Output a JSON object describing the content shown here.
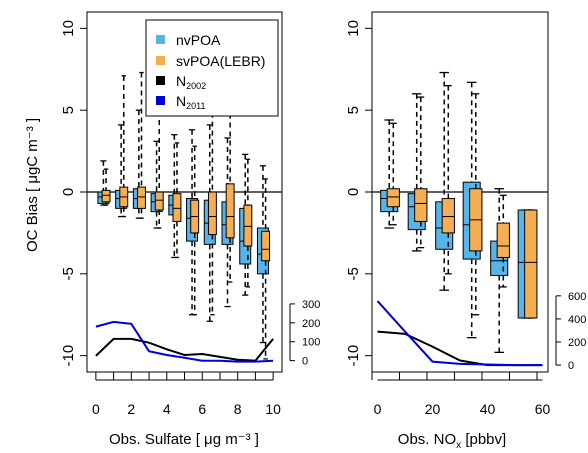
{
  "chart_data": [
    {
      "type": "boxplot",
      "panel": "left",
      "ylabel": "OC Bias [ μgC m⁻³ ]",
      "xlabel": "Obs. Sulfate [ μg m⁻³ ]",
      "xlim": [
        -0.5,
        10.5
      ],
      "ylim": [
        -11,
        11
      ],
      "yticks": [
        -10,
        -5,
        0,
        5,
        10
      ],
      "xticks": [
        0,
        2,
        4,
        6,
        8,
        10
      ],
      "ref_line_y": 0,
      "legend": {
        "position": "top-right",
        "entries": [
          {
            "label": "nvPOA",
            "color": "#56b4e9",
            "kind": "box"
          },
          {
            "label": "svPOA(LEBR)",
            "color": "#f5ae52",
            "kind": "box"
          },
          {
            "label_main": "N",
            "label_sub": "2002",
            "color": "#000000",
            "kind": "box"
          },
          {
            "label_main": "N",
            "label_sub": "2011",
            "color": "#0000dd",
            "kind": "box"
          }
        ]
      },
      "series": [
        {
          "name": "nvPOA",
          "color": "#56b4e9",
          "boxes": [
            {
              "x": 0.5,
              "q1": -0.7,
              "median": -0.3,
              "q3": 0.0,
              "whisker_low": -0.8,
              "whisker_high": 1.9
            },
            {
              "x": 1.5,
              "q1": -1.0,
              "median": -0.4,
              "q3": 0.1,
              "whisker_low": -1.5,
              "whisker_high": 4.1
            },
            {
              "x": 2.5,
              "q1": -1.0,
              "median": -0.4,
              "q3": 0.2,
              "whisker_low": -1.6,
              "whisker_high": 5.0
            },
            {
              "x": 3.5,
              "q1": -1.2,
              "median": -0.6,
              "q3": -0.1,
              "whisker_low": -2.2,
              "whisker_high": 3.1
            },
            {
              "x": 4.5,
              "q1": -1.4,
              "median": -0.8,
              "q3": -0.2,
              "whisker_low": -4.0,
              "whisker_high": 3.5
            },
            {
              "x": 5.5,
              "q1": -3.0,
              "median": -1.6,
              "q3": -0.4,
              "whisker_low": -7.5,
              "whisker_high": 3.8
            },
            {
              "x": 6.5,
              "q1": -3.2,
              "median": -1.9,
              "q3": -0.5,
              "whisker_low": -7.9,
              "whisker_high": 4.1
            },
            {
              "x": 7.5,
              "q1": -3.2,
              "median": -2.0,
              "q3": -0.6,
              "whisker_low": -7.0,
              "whisker_high": 3.3
            },
            {
              "x": 8.5,
              "q1": -4.4,
              "median": -3.0,
              "q3": -1.0,
              "whisker_low": -6.3,
              "whisker_high": 2.3
            },
            {
              "x": 9.5,
              "q1": -5.0,
              "median": -3.8,
              "q3": -2.2,
              "whisker_low": -9.2,
              "whisker_high": 1.6
            }
          ]
        },
        {
          "name": "svPOA(LEBR)",
          "color": "#f5ae52",
          "boxes": [
            {
              "x": 0.5,
              "q1": -0.6,
              "median": -0.2,
              "q3": 0.1,
              "whisker_low": -0.8,
              "whisker_high": 1.4
            },
            {
              "x": 1.5,
              "q1": -0.9,
              "median": -0.3,
              "q3": 0.3,
              "whisker_low": -1.5,
              "whisker_high": 7.1
            },
            {
              "x": 2.5,
              "q1": -1.0,
              "median": -0.3,
              "q3": 0.3,
              "whisker_low": -1.6,
              "whisker_high": 7.3
            },
            {
              "x": 3.5,
              "q1": -1.1,
              "median": -0.5,
              "q3": 0.0,
              "whisker_low": -2.2,
              "whisker_high": 5.5
            },
            {
              "x": 4.5,
              "q1": -1.8,
              "median": -1.0,
              "q3": -0.1,
              "whisker_low": -4.0,
              "whisker_high": 3.0
            },
            {
              "x": 5.5,
              "q1": -2.5,
              "median": -1.5,
              "q3": -0.5,
              "whisker_low": -7.5,
              "whisker_high": 2.8
            },
            {
              "x": 6.5,
              "q1": -2.6,
              "median": -1.5,
              "q3": 0.0,
              "whisker_low": -7.5,
              "whisker_high": 5.4
            },
            {
              "x": 7.5,
              "q1": -2.8,
              "median": -1.5,
              "q3": 0.5,
              "whisker_low": -5.5,
              "whisker_high": 5.9
            },
            {
              "x": 8.5,
              "q1": -3.3,
              "median": -2.1,
              "q3": -0.8,
              "whisker_low": -5.8,
              "whisker_high": 2.0
            },
            {
              "x": 9.5,
              "q1": -4.2,
              "median": -3.5,
              "q3": -2.4,
              "whisker_low": -10.2,
              "whisker_high": 0.8
            }
          ]
        }
      ],
      "n_counts": {
        "secondary_ticks": [
          0,
          100,
          200,
          300
        ],
        "secondary_ylim": [
          -60,
          400
        ],
        "x": [
          0,
          1,
          2,
          3,
          4,
          5,
          6,
          7,
          8,
          9,
          10
        ],
        "series": [
          {
            "name": "N2002",
            "color": "#000000",
            "values": [
              25,
              115,
              115,
              95,
              60,
              30,
              35,
              20,
              5,
              0,
              115
            ]
          },
          {
            "name": "N2011",
            "color": "#0000dd",
            "values": [
              180,
              205,
              195,
              50,
              30,
              15,
              0,
              0,
              -5,
              -5,
              0
            ]
          }
        ]
      }
    },
    {
      "type": "boxplot",
      "panel": "right",
      "xlabel_main": "Obs. NO",
      "xlabel_sub": "x",
      "xlabel_tail": "  [pbbv]",
      "xlim": [
        -2,
        62
      ],
      "ylim": [
        -11,
        11
      ],
      "yticks": [
        -10,
        -5,
        0,
        5,
        10
      ],
      "xticks": [
        0,
        20,
        40,
        60
      ],
      "ref_line_y": 0,
      "series": [
        {
          "name": "nvPOA",
          "color": "#56b4e9",
          "boxes": [
            {
              "x": 5,
              "q1": -1.2,
              "median": -0.4,
              "q3": 0.1,
              "whisker_low": -2.2,
              "whisker_high": 4.4
            },
            {
              "x": 15,
              "q1": -2.3,
              "median": -0.9,
              "q3": -0.1,
              "whisker_low": -3.6,
              "whisker_high": 6.0
            },
            {
              "x": 25,
              "q1": -3.5,
              "median": -2.2,
              "q3": -0.6,
              "whisker_low": -6.0,
              "whisker_high": 7.3
            },
            {
              "x": 35,
              "q1": -4.1,
              "median": -2.0,
              "q3": 0.6,
              "whisker_low": -8.9,
              "whisker_high": 6.7
            },
            {
              "x": 45,
              "q1": -5.1,
              "median": -4.2,
              "q3": -3.0,
              "whisker_low": -9.8,
              "whisker_high": 0.2
            },
            {
              "x": 55,
              "q1": -7.7,
              "median": -4.3,
              "q3": -1.1,
              "whisker_low": -7.7,
              "whisker_high": -1.1
            }
          ]
        },
        {
          "name": "svPOA(LEBR)",
          "color": "#f5ae52",
          "boxes": [
            {
              "x": 5,
              "q1": -0.9,
              "median": -0.3,
              "q3": 0.2,
              "whisker_low": -2.0,
              "whisker_high": 4.2
            },
            {
              "x": 15,
              "q1": -1.8,
              "median": -0.7,
              "q3": 0.2,
              "whisker_low": -3.4,
              "whisker_high": 5.8
            },
            {
              "x": 25,
              "q1": -2.5,
              "median": -1.5,
              "q3": -0.4,
              "whisker_low": -5.0,
              "whisker_high": 6.5
            },
            {
              "x": 35,
              "q1": -3.6,
              "median": -1.7,
              "q3": 0.2,
              "whisker_low": -7.5,
              "whisker_high": 6.0
            },
            {
              "x": 45,
              "q1": -4.0,
              "median": -3.3,
              "q3": -1.9,
              "whisker_low": -5.8,
              "whisker_high": -0.2
            },
            {
              "x": 55,
              "q1": -7.7,
              "median": -4.3,
              "q3": -1.1,
              "whisker_low": -7.7,
              "whisker_high": -1.1
            }
          ]
        }
      ],
      "n_counts": {
        "secondary_ticks": [
          0,
          200,
          400,
          600
        ],
        "secondary_ylim": [
          -60,
          850
        ],
        "x": [
          0,
          10,
          20,
          30,
          40,
          50,
          60
        ],
        "series": [
          {
            "name": "N2002",
            "color": "#000000",
            "values": [
              290,
              270,
              160,
              40,
              0,
              0,
              0
            ]
          },
          {
            "name": "N2011",
            "color": "#0000dd",
            "values": [
              555,
              290,
              30,
              10,
              5,
              0,
              0
            ]
          }
        ]
      }
    }
  ]
}
